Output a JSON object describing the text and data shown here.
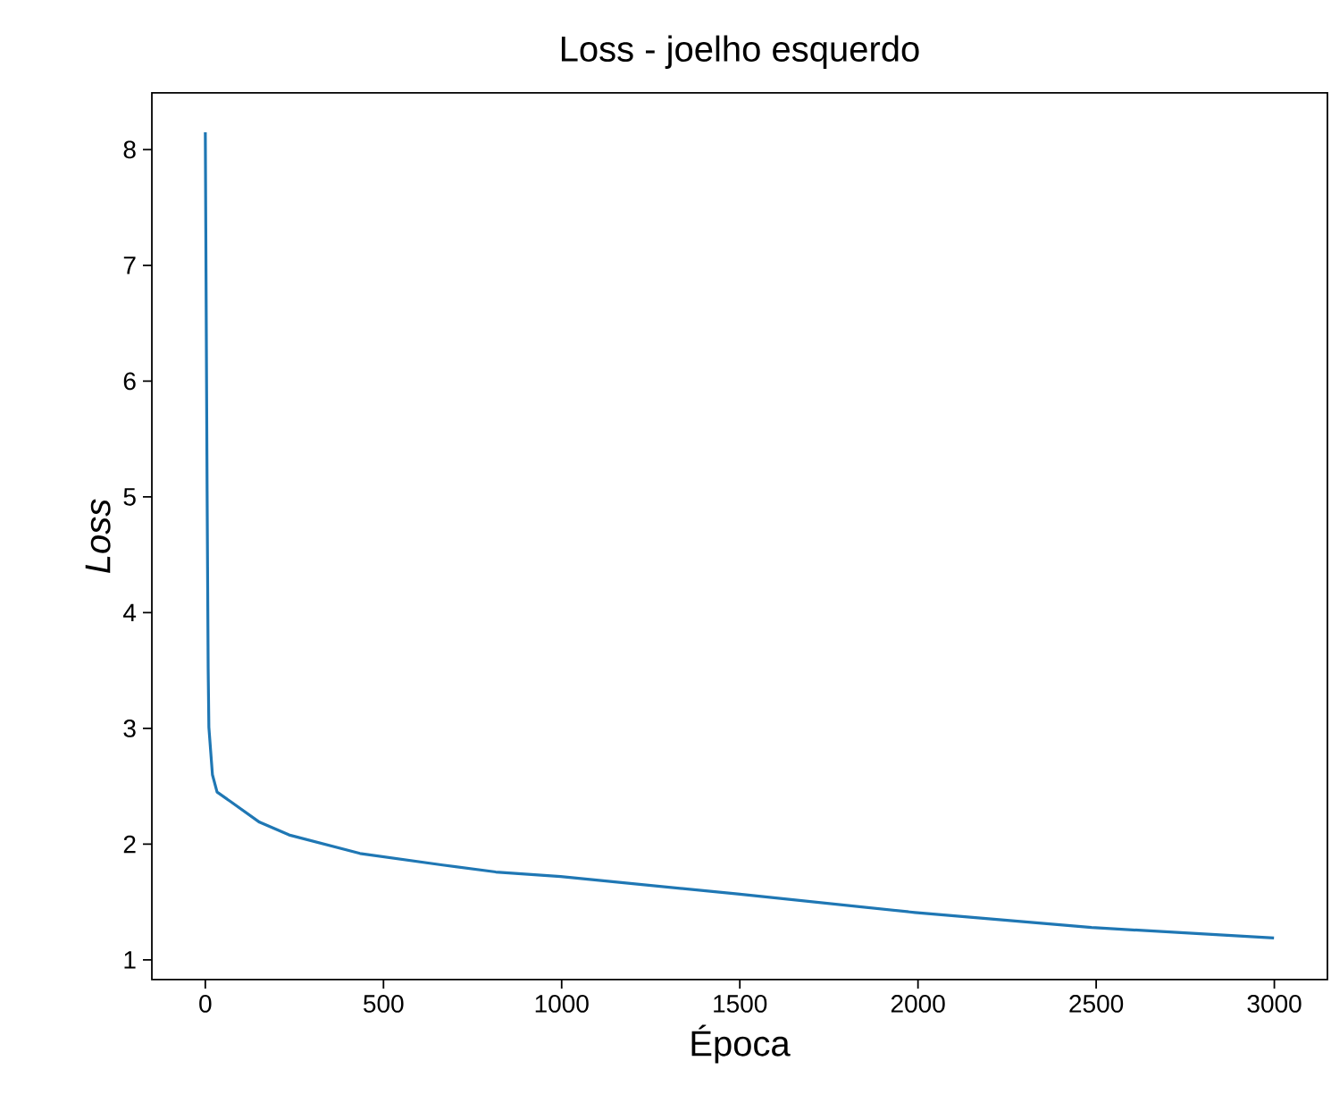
{
  "chart_data": {
    "type": "line",
    "title": "Loss - joelho esquerdo",
    "xlabel": "Época",
    "ylabel": "Loss",
    "xlim": [
      -150,
      3149
    ],
    "ylim": [
      0.83,
      8.49
    ],
    "xticks": [
      0,
      500,
      1000,
      1500,
      2000,
      2500,
      3000
    ],
    "yticks": [
      1,
      2,
      3,
      4,
      5,
      6,
      7,
      8
    ],
    "series": [
      {
        "color": "#1f77b4",
        "x": [
          0,
          5,
          8,
          10,
          20,
          33,
          70,
          152,
          235,
          434,
          666,
          815,
          997,
          1494,
          1991,
          2487,
          2999
        ],
        "values": [
          8.15,
          5.05,
          3.52,
          3.01,
          2.6,
          2.45,
          2.37,
          2.19,
          2.08,
          1.92,
          1.82,
          1.76,
          1.72,
          1.57,
          1.41,
          1.28,
          1.19
        ]
      }
    ]
  }
}
